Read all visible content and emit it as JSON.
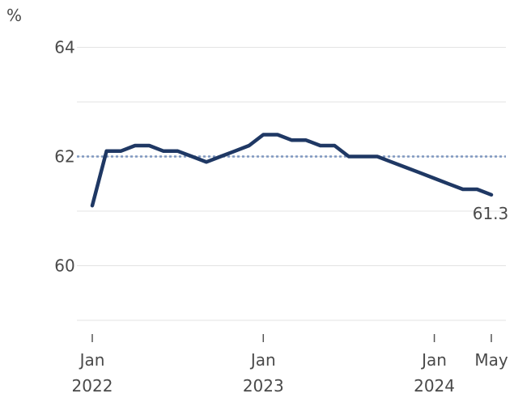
{
  "chart_data": {
    "type": "line",
    "unit": "%",
    "ylim": [
      59,
      64.2
    ],
    "y_ticks": [
      {
        "value": 64,
        "label": "64"
      },
      {
        "value": 62,
        "label": "62"
      },
      {
        "value": 60,
        "label": "60"
      }
    ],
    "x_ticks": [
      {
        "date": "2022-01",
        "month": "Jan",
        "year": "2022"
      },
      {
        "date": "2023-01",
        "month": "Jan",
        "year": "2023"
      },
      {
        "date": "2024-01",
        "month": "Jan",
        "year": "2024"
      },
      {
        "date": "2024-05",
        "month": "May",
        "year": ""
      }
    ],
    "series": [
      {
        "points": [
          {
            "x": "2022-01",
            "y": 61.1
          },
          {
            "x": "2022-02",
            "y": 62.1
          },
          {
            "x": "2022-03",
            "y": 62.1
          },
          {
            "x": "2022-04",
            "y": 62.2
          },
          {
            "x": "2022-05",
            "y": 62.2
          },
          {
            "x": "2022-06",
            "y": 62.1
          },
          {
            "x": "2022-07",
            "y": 62.1
          },
          {
            "x": "2022-08",
            "y": 62.0
          },
          {
            "x": "2022-09",
            "y": 61.9
          },
          {
            "x": "2022-10",
            "y": 62.0
          },
          {
            "x": "2022-11",
            "y": 62.1
          },
          {
            "x": "2022-12",
            "y": 62.2
          },
          {
            "x": "2023-01",
            "y": 62.4
          },
          {
            "x": "2023-02",
            "y": 62.4
          },
          {
            "x": "2023-03",
            "y": 62.3
          },
          {
            "x": "2023-04",
            "y": 62.3
          },
          {
            "x": "2023-05",
            "y": 62.2
          },
          {
            "x": "2023-06",
            "y": 62.2
          },
          {
            "x": "2023-07",
            "y": 62.0
          },
          {
            "x": "2023-08",
            "y": 62.0
          },
          {
            "x": "2023-09",
            "y": 62.0
          },
          {
            "x": "2023-10",
            "y": 61.9
          },
          {
            "x": "2023-11",
            "y": 61.8
          },
          {
            "x": "2023-12",
            "y": 61.7
          },
          {
            "x": "2024-01",
            "y": 61.6
          },
          {
            "x": "2024-02",
            "y": 61.5
          },
          {
            "x": "2024-03",
            "y": 61.4
          },
          {
            "x": "2024-04",
            "y": 61.4
          },
          {
            "x": "2024-05",
            "y": 61.3
          }
        ]
      }
    ],
    "reference_line": {
      "y": 62.0,
      "style": "dashed"
    },
    "end_label": "61.3",
    "grid": true,
    "colors": {
      "line": "#1f3864",
      "reference": "#7f97c0",
      "grid": "#e3e3e3",
      "axis": "#555555",
      "text": "#4a4a4a"
    }
  }
}
